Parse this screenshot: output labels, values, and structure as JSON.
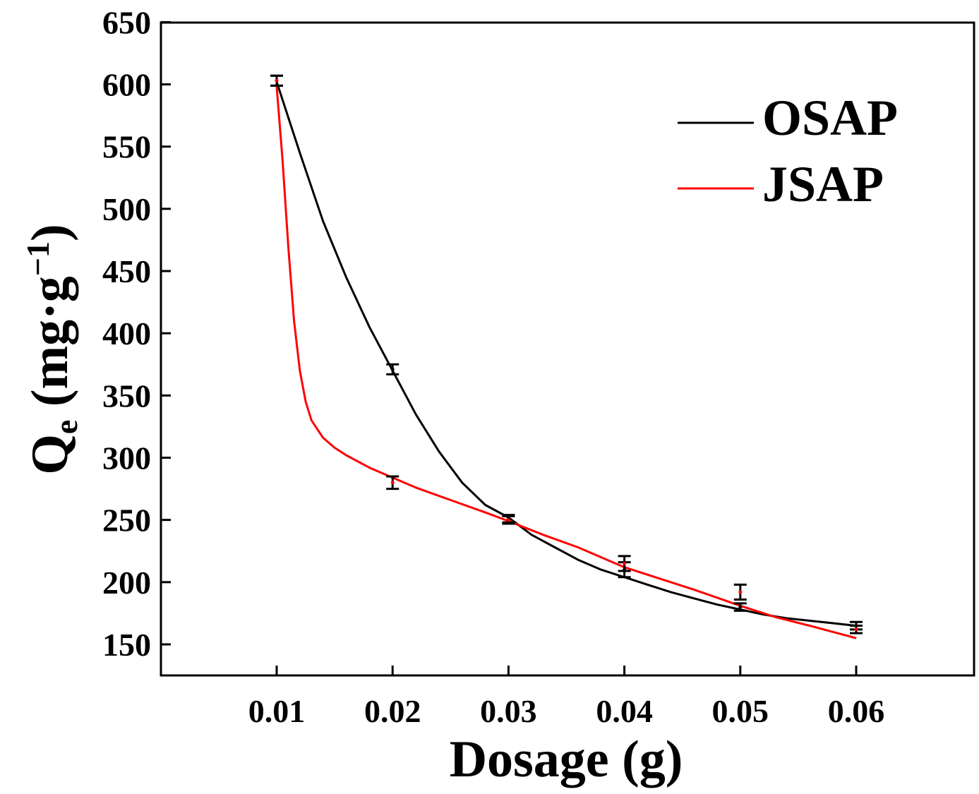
{
  "chart_data": {
    "type": "line",
    "title": "",
    "xlabel": "Dosage (g)",
    "ylabel": {
      "main": "Q",
      "subscript": "e",
      "unit_prefix": " (mg·g",
      "superscript": "−1",
      "unit_suffix": ")"
    },
    "xlim": [
      0.0,
      0.07
    ],
    "ylim": [
      125,
      650
    ],
    "xticks": [
      0.01,
      0.02,
      0.03,
      0.04,
      0.05,
      0.06
    ],
    "xtick_labels": [
      "0.01",
      "0.02",
      "0.03",
      "0.04",
      "0.05",
      "0.06"
    ],
    "yticks": [
      150,
      200,
      250,
      300,
      350,
      400,
      450,
      500,
      550,
      600,
      650
    ],
    "ytick_labels": [
      "150",
      "200",
      "250",
      "300",
      "350",
      "400",
      "450",
      "500",
      "550",
      "600",
      "650"
    ],
    "grid": false,
    "legend_position": "top-right",
    "series": [
      {
        "name": "OSAP",
        "color": "#000000",
        "x": [
          0.01,
          0.02,
          0.03,
          0.04,
          0.05,
          0.06
        ],
        "y": [
          603,
          371,
          251,
          210,
          180,
          165
        ],
        "err": [
          4,
          4,
          3,
          6,
          3,
          3
        ],
        "fit_x": [
          0.01,
          0.012,
          0.014,
          0.016,
          0.018,
          0.02,
          0.022,
          0.024,
          0.026,
          0.028,
          0.03,
          0.032,
          0.034,
          0.036,
          0.038,
          0.04,
          0.042,
          0.044,
          0.046,
          0.048,
          0.05,
          0.052,
          0.054,
          0.056,
          0.058,
          0.06
        ],
        "fit_y": [
          602,
          545,
          490,
          445,
          405,
          370,
          335,
          305,
          280,
          262,
          252,
          238,
          228,
          218,
          210,
          204,
          198,
          192,
          187,
          182,
          178,
          174,
          171,
          169,
          167,
          165
        ]
      },
      {
        "name": "JSAP",
        "color": "#ff0000",
        "x": [
          0.01,
          0.02,
          0.03,
          0.04,
          0.05,
          0.06
        ],
        "y": [
          603,
          280,
          250,
          215,
          192,
          162
        ],
        "err": [
          4,
          5,
          3,
          6,
          6,
          3
        ],
        "fit_x": [
          0.01,
          0.0105,
          0.011,
          0.0115,
          0.012,
          0.0125,
          0.013,
          0.014,
          0.015,
          0.016,
          0.018,
          0.02,
          0.022,
          0.025,
          0.028,
          0.03,
          0.033,
          0.036,
          0.04,
          0.043,
          0.046,
          0.05,
          0.053,
          0.056,
          0.06
        ],
        "fit_y": [
          598,
          540,
          470,
          410,
          370,
          345,
          330,
          316,
          308,
          302,
          292,
          284,
          276,
          266,
          256,
          249,
          238,
          228,
          212,
          203,
          194,
          181,
          172,
          165,
          155
        ]
      }
    ]
  }
}
